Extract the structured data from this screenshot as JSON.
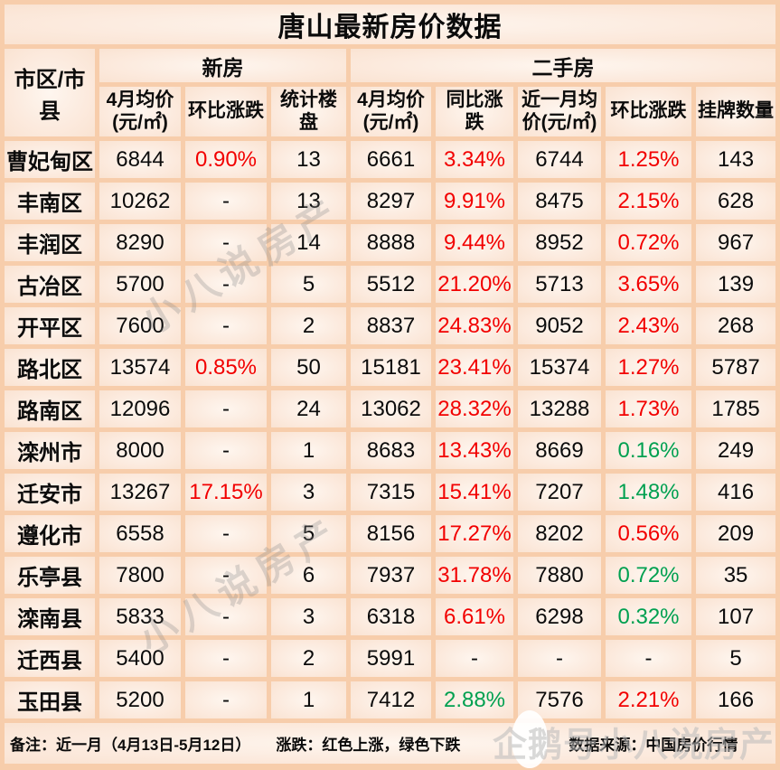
{
  "colors": {
    "up_red": "#f20000",
    "down_green": "#00a050",
    "grid": "#f7cdab",
    "cell_light": "#fdf2ea",
    "text": "#0b0b0b",
    "watermark_gray": "#b9b9b9"
  },
  "chart_data": {
    "type": "table",
    "title": "唐山最新房价数据",
    "corner_header": "市区/市县",
    "groups": [
      {
        "label": "新房",
        "span": 3
      },
      {
        "label": "二手房",
        "span": 5
      }
    ],
    "column_headers": [
      "4月均价(元/㎡)",
      "环比涨跌",
      "统计楼盘",
      "4月均价(元/㎡)",
      "同比涨跌",
      "近一月均价(元/㎡)",
      "环比涨跌",
      "挂牌数量"
    ],
    "rows": [
      {
        "region": "曹妃甸区",
        "cells": [
          {
            "text": "6844"
          },
          {
            "text": "0.90%",
            "color": "red"
          },
          {
            "text": "13"
          },
          {
            "text": "6661"
          },
          {
            "text": "3.34%",
            "color": "red"
          },
          {
            "text": "6744"
          },
          {
            "text": "1.25%",
            "color": "red"
          },
          {
            "text": "143"
          }
        ]
      },
      {
        "region": "丰南区",
        "cells": [
          {
            "text": "10262"
          },
          {
            "text": "-"
          },
          {
            "text": "13"
          },
          {
            "text": "8297"
          },
          {
            "text": "9.91%",
            "color": "red"
          },
          {
            "text": "8475"
          },
          {
            "text": "2.15%",
            "color": "red"
          },
          {
            "text": "628"
          }
        ]
      },
      {
        "region": "丰润区",
        "cells": [
          {
            "text": "8290"
          },
          {
            "text": "-"
          },
          {
            "text": "14"
          },
          {
            "text": "8888"
          },
          {
            "text": "9.44%",
            "color": "red"
          },
          {
            "text": "8952"
          },
          {
            "text": "0.72%",
            "color": "red"
          },
          {
            "text": "967"
          }
        ]
      },
      {
        "region": "古冶区",
        "cells": [
          {
            "text": "5700"
          },
          {
            "text": "-"
          },
          {
            "text": "5"
          },
          {
            "text": "5512"
          },
          {
            "text": "21.20%",
            "color": "red"
          },
          {
            "text": "5713"
          },
          {
            "text": "3.65%",
            "color": "red"
          },
          {
            "text": "139"
          }
        ]
      },
      {
        "region": "开平区",
        "cells": [
          {
            "text": "7600"
          },
          {
            "text": "-"
          },
          {
            "text": "2"
          },
          {
            "text": "8837"
          },
          {
            "text": "24.83%",
            "color": "red"
          },
          {
            "text": "9052"
          },
          {
            "text": "2.43%",
            "color": "red"
          },
          {
            "text": "268"
          }
        ]
      },
      {
        "region": "路北区",
        "cells": [
          {
            "text": "13574"
          },
          {
            "text": "0.85%",
            "color": "red"
          },
          {
            "text": "50"
          },
          {
            "text": "15181"
          },
          {
            "text": "23.41%",
            "color": "red"
          },
          {
            "text": "15374"
          },
          {
            "text": "1.27%",
            "color": "red"
          },
          {
            "text": "5787"
          }
        ]
      },
      {
        "region": "路南区",
        "cells": [
          {
            "text": "12096"
          },
          {
            "text": "-"
          },
          {
            "text": "24"
          },
          {
            "text": "13062"
          },
          {
            "text": "28.32%",
            "color": "red"
          },
          {
            "text": "13288"
          },
          {
            "text": "1.73%",
            "color": "red"
          },
          {
            "text": "1785"
          }
        ]
      },
      {
        "region": "滦州市",
        "cells": [
          {
            "text": "8000"
          },
          {
            "text": "-"
          },
          {
            "text": "1"
          },
          {
            "text": "8683"
          },
          {
            "text": "13.43%",
            "color": "red"
          },
          {
            "text": "8669"
          },
          {
            "text": "0.16%",
            "color": "green"
          },
          {
            "text": "249"
          }
        ]
      },
      {
        "region": "迁安市",
        "cells": [
          {
            "text": "13267"
          },
          {
            "text": "17.15%",
            "color": "red"
          },
          {
            "text": "3"
          },
          {
            "text": "7315"
          },
          {
            "text": "15.41%",
            "color": "red"
          },
          {
            "text": "7207"
          },
          {
            "text": "1.48%",
            "color": "green"
          },
          {
            "text": "416"
          }
        ]
      },
      {
        "region": "遵化市",
        "cells": [
          {
            "text": "6558"
          },
          {
            "text": "-"
          },
          {
            "text": "5"
          },
          {
            "text": "8156"
          },
          {
            "text": "17.27%",
            "color": "red"
          },
          {
            "text": "8202"
          },
          {
            "text": "0.56%",
            "color": "red"
          },
          {
            "text": "209"
          }
        ]
      },
      {
        "region": "乐亭县",
        "cells": [
          {
            "text": "7800"
          },
          {
            "text": "-"
          },
          {
            "text": "6"
          },
          {
            "text": "7937"
          },
          {
            "text": "31.78%",
            "color": "red"
          },
          {
            "text": "7880"
          },
          {
            "text": "0.72%",
            "color": "green"
          },
          {
            "text": "35"
          }
        ]
      },
      {
        "region": "滦南县",
        "cells": [
          {
            "text": "5833"
          },
          {
            "text": "-"
          },
          {
            "text": "3"
          },
          {
            "text": "6318"
          },
          {
            "text": "6.61%",
            "color": "red"
          },
          {
            "text": "6298"
          },
          {
            "text": "0.32%",
            "color": "green"
          },
          {
            "text": "107"
          }
        ]
      },
      {
        "region": "迁西县",
        "cells": [
          {
            "text": "5400"
          },
          {
            "text": "-"
          },
          {
            "text": "2"
          },
          {
            "text": "5991"
          },
          {
            "text": "-"
          },
          {
            "text": "-"
          },
          {
            "text": "-"
          },
          {
            "text": "5"
          }
        ]
      },
      {
        "region": "玉田县",
        "cells": [
          {
            "text": "5200"
          },
          {
            "text": "-"
          },
          {
            "text": "1"
          },
          {
            "text": "7412"
          },
          {
            "text": "2.88%",
            "color": "green"
          },
          {
            "text": "7576"
          },
          {
            "text": "2.21%",
            "color": "red"
          },
          {
            "text": "166"
          }
        ]
      }
    ]
  },
  "footer": {
    "note": "备注：近一月（4月13日-5月12日）",
    "legend": "涨跌：红色上涨，绿色下跌",
    "source": "数据来源：中国房价行情"
  },
  "watermarks": {
    "diagonal": "小八说房产",
    "bottom": "企鹅号小八说房产"
  }
}
